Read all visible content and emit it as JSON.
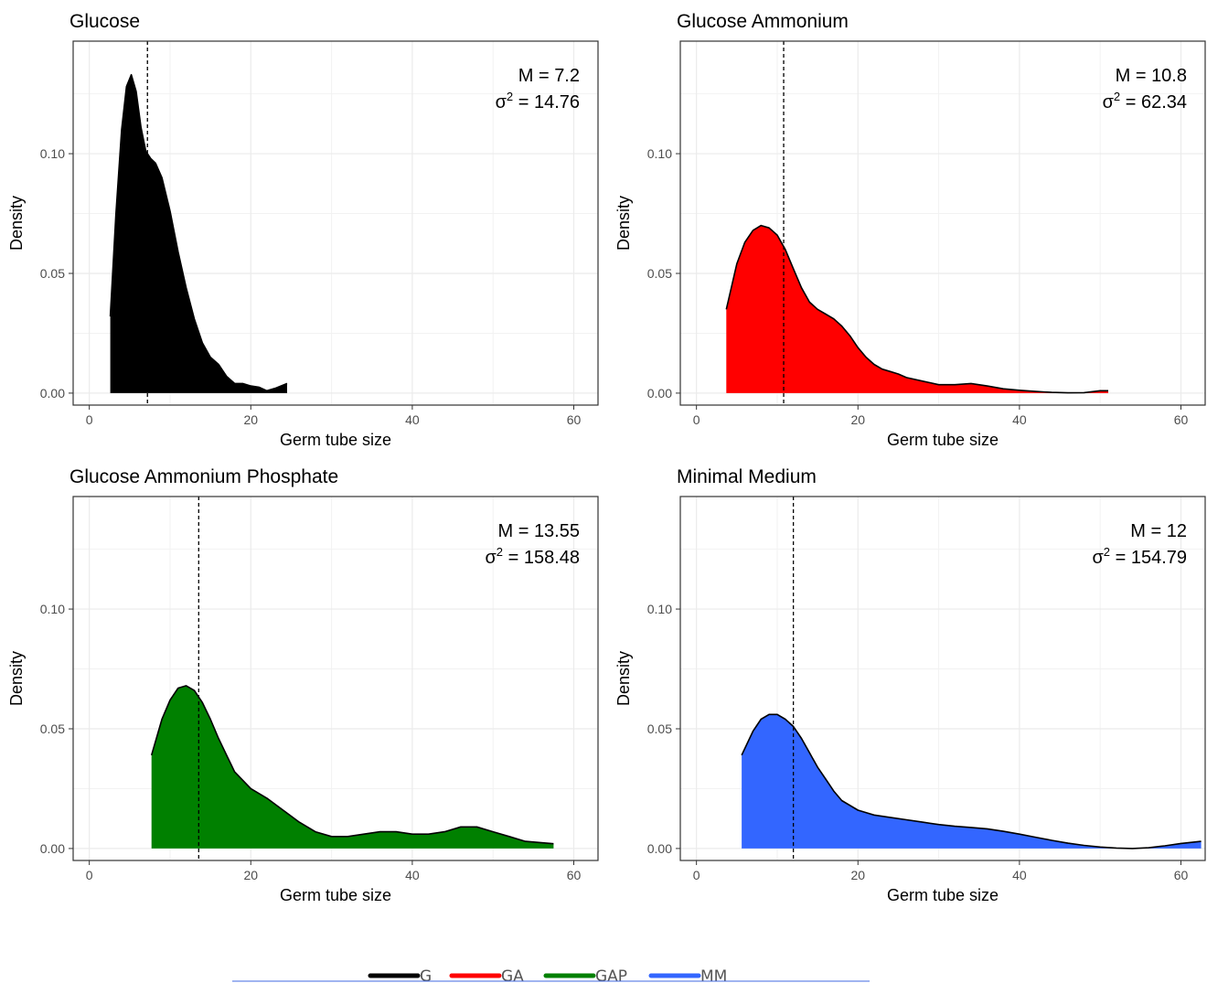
{
  "chart_data": [
    {
      "type": "area",
      "title": "Glucose",
      "xlabel": "Germ tube size",
      "ylabel": "Density",
      "xlim": [
        -2,
        63
      ],
      "ylim": [
        -0.005,
        0.147
      ],
      "xticks": [
        0,
        20,
        40,
        60
      ],
      "yticks": [
        0.0,
        0.05,
        0.1
      ],
      "ytick_labels": [
        "0.00",
        "0.05",
        "0.10"
      ],
      "grid": true,
      "fill": "#000000",
      "mean": 7.2,
      "annotation_mean": "M = 7.2",
      "annotation_var_value": "14.76",
      "x": [
        2.6,
        3.3,
        4.0,
        4.6,
        5.2,
        5.8,
        6.4,
        7.0,
        7.6,
        8.2,
        9.0,
        10.0,
        11.0,
        12.0,
        13.0,
        14.0,
        15.0,
        16.0,
        17.0,
        18.0,
        19.0,
        20.0,
        21.0,
        22.0,
        23.0,
        24.5
      ],
      "y": [
        0.032,
        0.075,
        0.11,
        0.128,
        0.133,
        0.126,
        0.111,
        0.101,
        0.098,
        0.096,
        0.09,
        0.076,
        0.059,
        0.044,
        0.031,
        0.021,
        0.015,
        0.012,
        0.007,
        0.004,
        0.004,
        0.003,
        0.0025,
        0.001,
        0.002,
        0.004
      ]
    },
    {
      "type": "area",
      "title": "Glucose Ammonium",
      "xlabel": "Germ tube size",
      "ylabel": "Density",
      "xlim": [
        -2,
        63
      ],
      "ylim": [
        -0.005,
        0.147
      ],
      "xticks": [
        0,
        20,
        40,
        60
      ],
      "yticks": [
        0.0,
        0.05,
        0.1
      ],
      "ytick_labels": [
        "0.00",
        "0.05",
        "0.10"
      ],
      "grid": true,
      "fill": "#ff0000",
      "mean": 10.8,
      "annotation_mean": "M = 10.8",
      "annotation_var_value": "62.34",
      "x": [
        3.7,
        5,
        6,
        7,
        8,
        9,
        10,
        11,
        12,
        13,
        14,
        15,
        16,
        17,
        18,
        19,
        20,
        21,
        22,
        23,
        24,
        25,
        26,
        28,
        30,
        32,
        34,
        36,
        38,
        40,
        42,
        44,
        46,
        48,
        50,
        51
      ],
      "y": [
        0.035,
        0.054,
        0.063,
        0.068,
        0.07,
        0.069,
        0.066,
        0.06,
        0.052,
        0.044,
        0.038,
        0.035,
        0.033,
        0.031,
        0.028,
        0.024,
        0.019,
        0.015,
        0.012,
        0.01,
        0.009,
        0.008,
        0.0065,
        0.005,
        0.0035,
        0.0035,
        0.004,
        0.003,
        0.0018,
        0.0012,
        0.0007,
        0.0003,
        0.0001,
        0.0002,
        0.001,
        0.001
      ]
    },
    {
      "type": "area",
      "title": "Glucose Ammonium Phosphate",
      "xlabel": "Germ tube size",
      "ylabel": "Density",
      "xlim": [
        -2,
        63
      ],
      "ylim": [
        -0.005,
        0.147
      ],
      "xticks": [
        0,
        20,
        40,
        60
      ],
      "yticks": [
        0.0,
        0.05,
        0.1
      ],
      "ytick_labels": [
        "0.00",
        "0.05",
        "0.10"
      ],
      "grid": true,
      "fill": "#008000",
      "mean": 13.55,
      "annotation_mean": "M = 13.55",
      "annotation_var_value": "158.48",
      "x": [
        7.7,
        9,
        10,
        11,
        12,
        13,
        14,
        15,
        16,
        17,
        18,
        20,
        22,
        24,
        26,
        28,
        30,
        32,
        34,
        36,
        38,
        40,
        42,
        44,
        46,
        48,
        50,
        52,
        54,
        57.5
      ],
      "y": [
        0.039,
        0.054,
        0.062,
        0.067,
        0.068,
        0.066,
        0.061,
        0.054,
        0.046,
        0.039,
        0.032,
        0.025,
        0.021,
        0.016,
        0.011,
        0.007,
        0.005,
        0.005,
        0.006,
        0.007,
        0.007,
        0.006,
        0.006,
        0.007,
        0.009,
        0.009,
        0.007,
        0.005,
        0.003,
        0.002
      ]
    },
    {
      "type": "area",
      "title": "Minimal Medium",
      "xlabel": "Germ tube size",
      "ylabel": "Density",
      "xlim": [
        -2,
        63
      ],
      "ylim": [
        -0.005,
        0.147
      ],
      "xticks": [
        0,
        20,
        40,
        60
      ],
      "yticks": [
        0.0,
        0.05,
        0.1
      ],
      "ytick_labels": [
        "0.00",
        "0.05",
        "0.10"
      ],
      "grid": true,
      "fill": "#3366ff",
      "mean": 12,
      "annotation_mean": "M = 12",
      "annotation_var_value": "154.79",
      "x": [
        5.6,
        7,
        8,
        9,
        10,
        11,
        12,
        13,
        14,
        15,
        16,
        17,
        18,
        20,
        22,
        24,
        26,
        28,
        30,
        32,
        34,
        36,
        38,
        40,
        42,
        44,
        46,
        48,
        50,
        52,
        54,
        56,
        58,
        60,
        62.5
      ],
      "y": [
        0.039,
        0.049,
        0.054,
        0.056,
        0.056,
        0.054,
        0.051,
        0.046,
        0.04,
        0.034,
        0.029,
        0.024,
        0.02,
        0.016,
        0.014,
        0.013,
        0.012,
        0.011,
        0.01,
        0.0093,
        0.0088,
        0.0082,
        0.0072,
        0.006,
        0.0047,
        0.0034,
        0.0022,
        0.0013,
        0.0006,
        0.0002,
        0.0,
        0.0003,
        0.0011,
        0.0021,
        0.003
      ]
    }
  ],
  "legend": {
    "items": [
      {
        "label": "G",
        "color": "#000000"
      },
      {
        "label": "GA",
        "color": "#ff0000"
      },
      {
        "label": "GAP",
        "color": "#008000"
      },
      {
        "label": "MM",
        "color": "#3366ff"
      }
    ],
    "underline_color": "#4169e1"
  }
}
